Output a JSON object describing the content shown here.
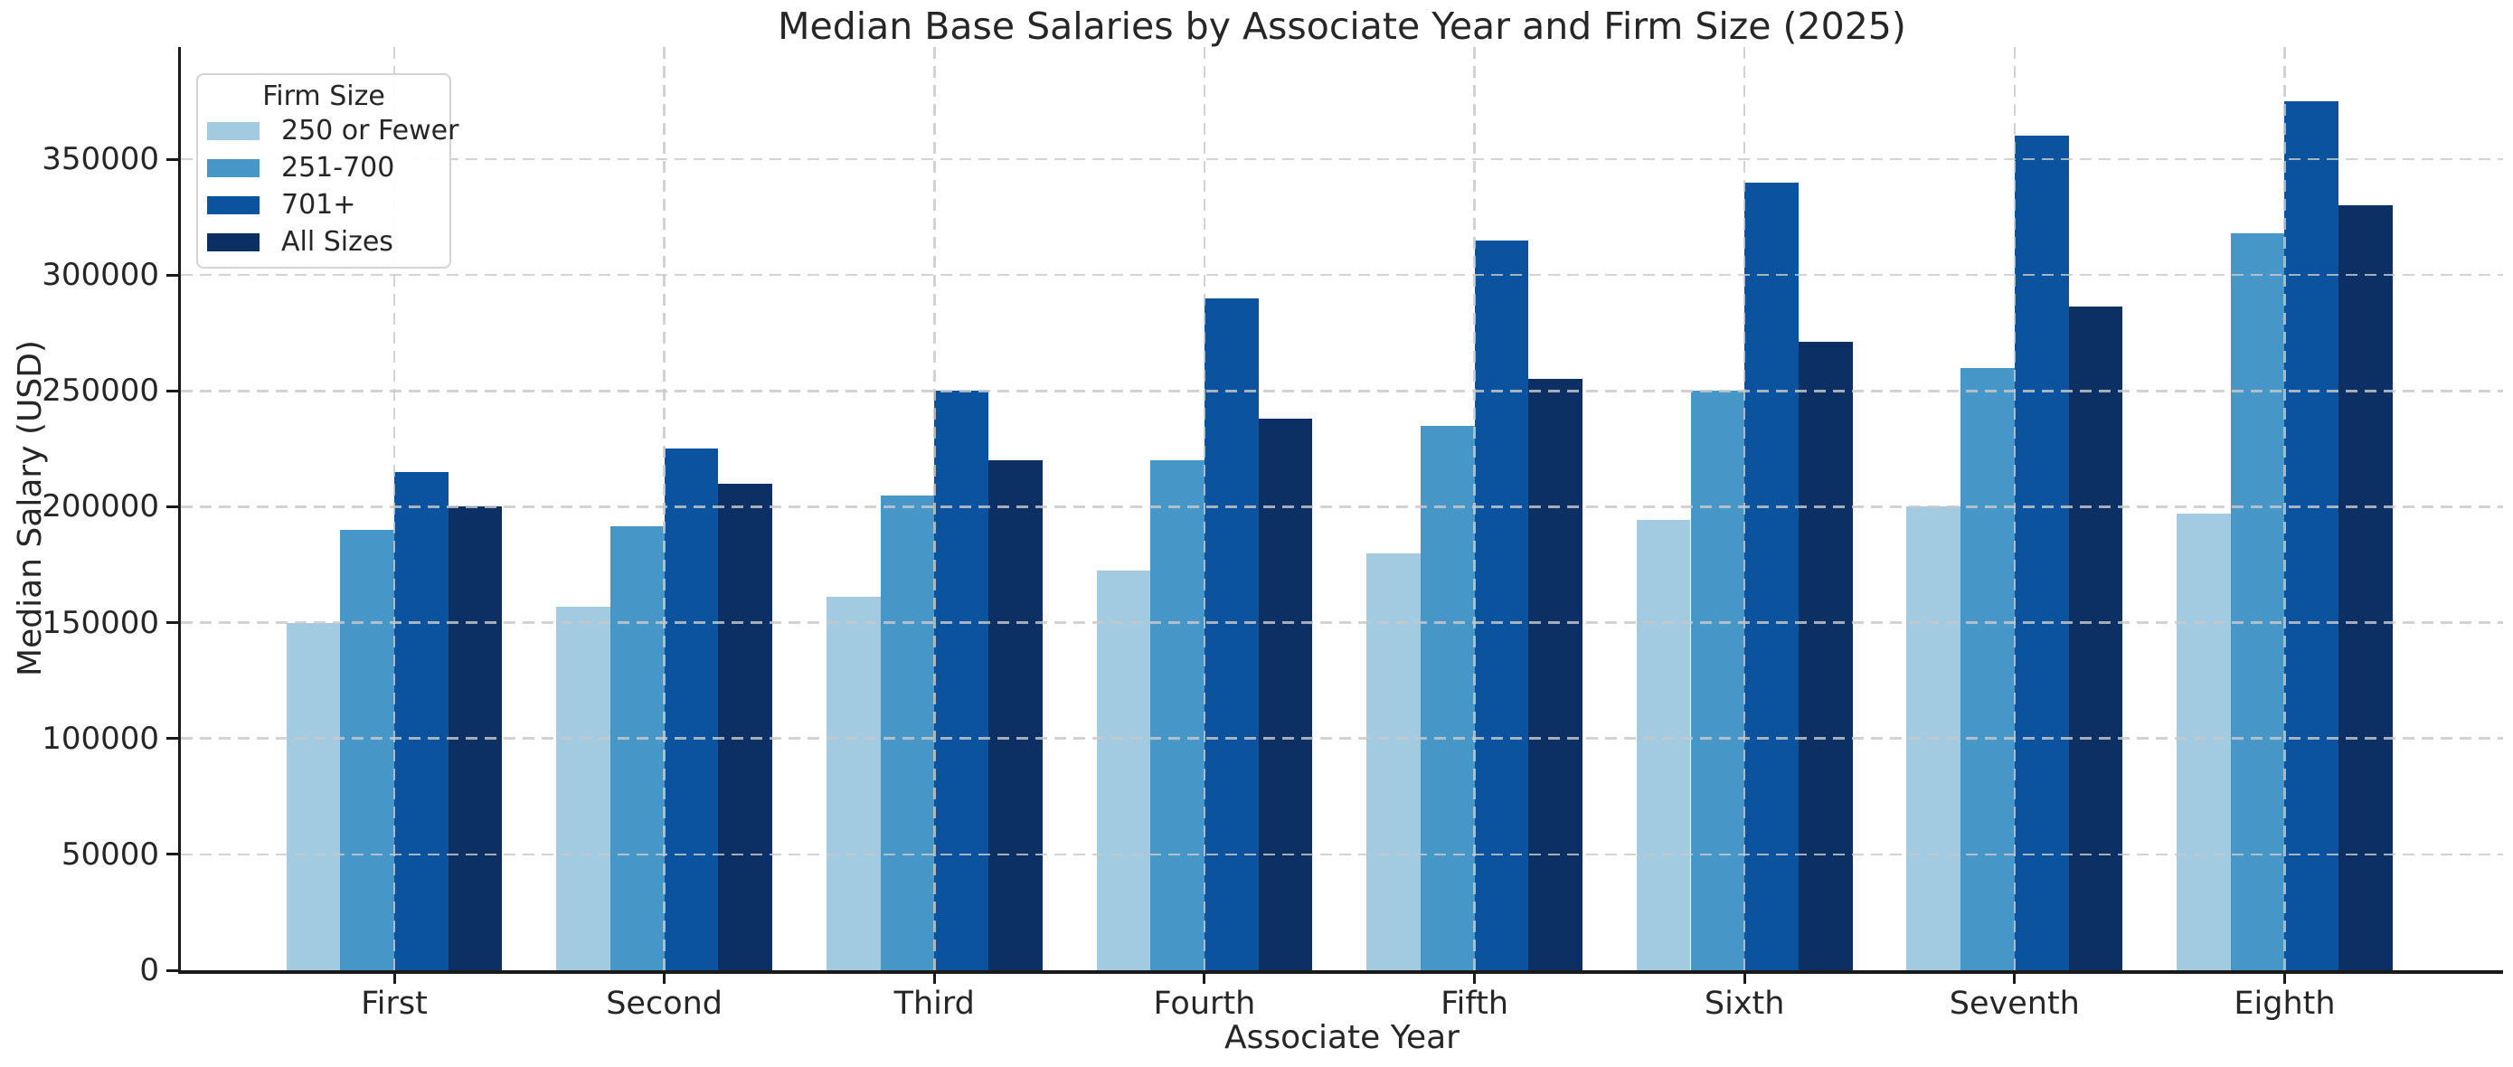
{
  "figure_background": "#ffffff",
  "text_color": "#262626",
  "grid_color": "#c8c8c8",
  "spine_color": "#1a1a1a",
  "chart_data": {
    "type": "bar",
    "title": "Median Base Salaries by Associate Year and Firm Size (2025)",
    "xlabel": "Associate Year",
    "ylabel": "Median Salary (USD)",
    "categories": [
      "First",
      "Second",
      "Third",
      "Fourth",
      "Fifth",
      "Sixth",
      "Seventh",
      "Eighth"
    ],
    "series": [
      {
        "name": "250 or Fewer",
        "color": "#a2cbe2",
        "values": [
          150000,
          157000,
          161000,
          172500,
          180000,
          194500,
          200000,
          197000
        ]
      },
      {
        "name": "251-700",
        "color": "#4796c8",
        "values": [
          190000,
          191500,
          205000,
          220000,
          235000,
          250000,
          260000,
          318000
        ]
      },
      {
        "name": "701+",
        "color": "#0b539e",
        "values": [
          215000,
          225000,
          250000,
          290000,
          315000,
          340000,
          360000,
          375000
        ]
      },
      {
        "name": "All Sizes",
        "color": "#0d3064",
        "values": [
          200000,
          210000,
          220000,
          238000,
          255000,
          271000,
          286500,
          330000
        ]
      }
    ],
    "legend_title": "Firm Size",
    "legend_position": "upper left",
    "y_ticks": [
      0,
      50000,
      100000,
      150000,
      200000,
      250000,
      300000,
      350000
    ],
    "ylim": [
      0,
      398000
    ],
    "grid": "dashed horizontal and vertical, drawn over bars"
  }
}
